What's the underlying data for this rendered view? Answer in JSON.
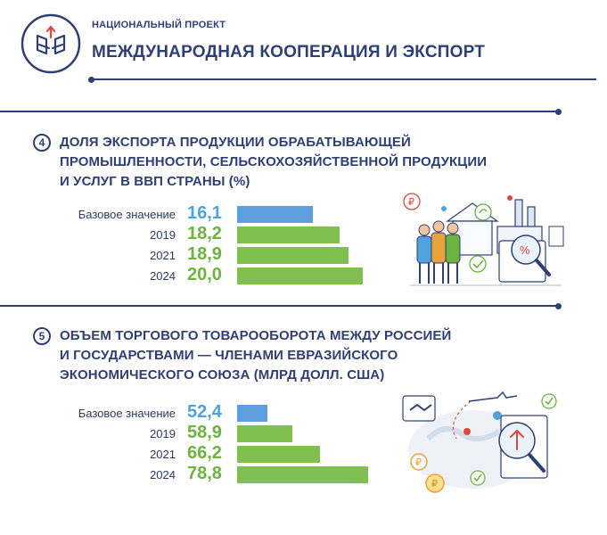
{
  "header": {
    "kicker": "НАЦИОНАЛЬНЫЙ ПРОЕКТ",
    "title": "МЕЖДУНАРОДНАЯ КООПЕРАЦИЯ И ЭКСПОРТ"
  },
  "colors": {
    "navy": "#2f3f73",
    "base_bar": "#5f9fe0",
    "bar": "#7fc050",
    "base_value": "#4ea3de",
    "value": "#6db33f"
  },
  "sections": [
    {
      "number": "4",
      "title_lines": [
        "ДОЛЯ ЭКСПОРТА ПРОДУКЦИИ ОБРАБАТЫВАЮЩЕЙ",
        "ПРОМЫШЛЕННОСТИ, СЕЛЬСКОХОЗЯЙСТВЕННОЙ ПРОДУКЦИИ",
        "И УСЛУГ В ВВП СТРАНЫ (%)"
      ],
      "rows": [
        {
          "label": "Базовое значение",
          "value": "16,1"
        },
        {
          "label": "2019",
          "value": "18,2"
        },
        {
          "label": "2021",
          "value": "18,9"
        },
        {
          "label": "2024",
          "value": "20,0"
        }
      ],
      "illustration_icon": "export-growth-illustration"
    },
    {
      "number": "5",
      "title_lines": [
        "ОБЪЕМ ТОРГОВОГО ТОВАРООБОРОТА МЕЖДУ РОССИЕЙ",
        "И ГОСУДАРСТВАМИ — ЧЛЕНАМИ ЕВРАЗИЙСКОГО",
        "ЭКОНОМИЧЕСКОГО СОЮЗА (МЛРД ДОЛЛ. США)"
      ],
      "rows": [
        {
          "label": "Базовое значение",
          "value": "52,4"
        },
        {
          "label": "2019",
          "value": "58,9"
        },
        {
          "label": "2021",
          "value": "66,2"
        },
        {
          "label": "2024",
          "value": "78,8"
        }
      ],
      "illustration_icon": "trade-turnover-illustration"
    }
  ],
  "chart_data": [
    {
      "type": "bar",
      "title": "ДОЛЯ ЭКСПОРТА ПРОДУКЦИИ ОБРАБАТЫВАЮЩЕЙ ПРОМЫШЛЕННОСТИ, СЕЛЬСКОХОЗЯЙСТВЕННОЙ ПРОДУКЦИИ И УСЛУГ В ВВП СТРАНЫ (%)",
      "orientation": "horizontal",
      "categories": [
        "Базовое значение",
        "2019",
        "2021",
        "2024"
      ],
      "values": [
        16.1,
        18.2,
        18.9,
        20.0
      ]
    },
    {
      "type": "bar",
      "title": "ОБЪЕМ ТОРГОВОГО ТОВАРООБОРОТА МЕЖДУ РОССИЕЙ И ГОСУДАРСТВАМИ — ЧЛЕНАМИ ЕВРАЗИЙСКОГО ЭКОНОМИЧЕСКОГО СОЮЗА (МЛРД ДОЛЛ. США)",
      "orientation": "horizontal",
      "categories": [
        "Базовое значение",
        "2019",
        "2021",
        "2024"
      ],
      "values": [
        52.4,
        58.9,
        66.2,
        78.8
      ]
    }
  ]
}
